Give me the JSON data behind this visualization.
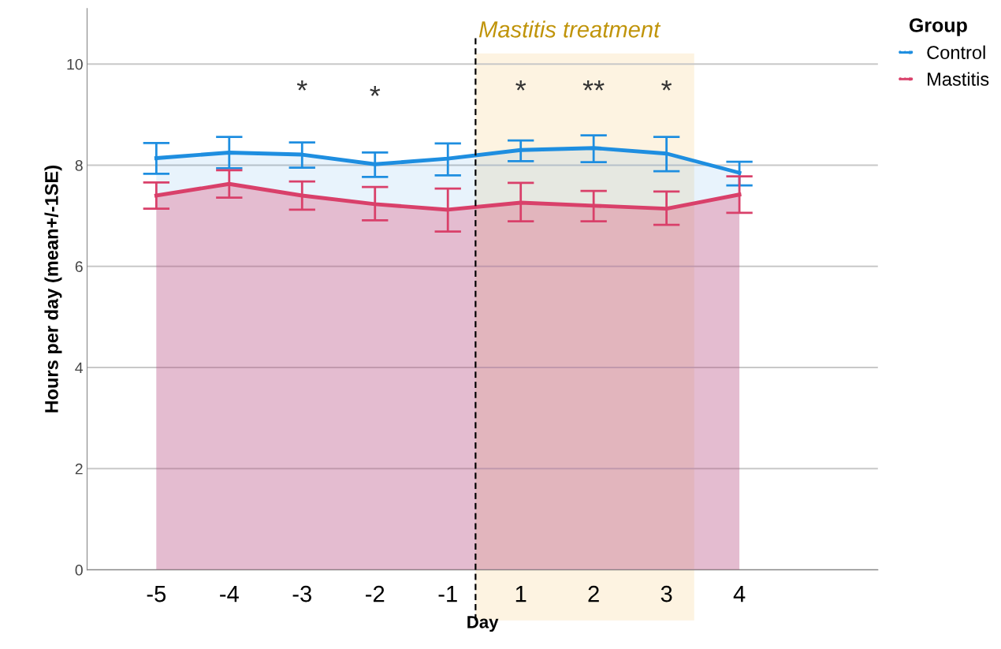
{
  "chart_data": {
    "type": "area",
    "xlabel": "Day",
    "ylabel": "Hours per day (mean+/-1SE)",
    "legend_title": "Group",
    "categories": [
      "-5",
      "-4",
      "-3",
      "-2",
      "-1",
      "1",
      "2",
      "3",
      "4"
    ],
    "series": [
      {
        "name": "Control",
        "color": "#1e8ee0",
        "values": [
          8.14,
          8.25,
          8.21,
          8.02,
          8.13,
          8.3,
          8.34,
          8.23,
          7.85
        ],
        "errors": [
          [
            7.83,
            8.44
          ],
          [
            7.94,
            8.56
          ],
          [
            7.95,
            8.45
          ],
          [
            7.77,
            8.25
          ],
          [
            7.8,
            8.43
          ],
          [
            8.08,
            8.49
          ],
          [
            8.06,
            8.59
          ],
          [
            7.88,
            8.56
          ],
          [
            7.6,
            8.07
          ]
        ]
      },
      {
        "name": "Mastitis",
        "color": "#d9406a",
        "values": [
          7.4,
          7.63,
          7.4,
          7.23,
          7.12,
          7.26,
          7.2,
          7.14,
          7.42
        ],
        "errors": [
          [
            7.14,
            7.66
          ],
          [
            7.36,
            7.9
          ],
          [
            7.12,
            7.68
          ],
          [
            6.91,
            7.57
          ],
          [
            6.69,
            7.54
          ],
          [
            6.89,
            7.65
          ],
          [
            6.89,
            7.49
          ],
          [
            6.82,
            7.48
          ],
          [
            7.06,
            7.78
          ]
        ]
      }
    ],
    "ylim": [
      0,
      11.1
    ],
    "yticks": [
      0,
      2,
      4,
      6,
      8,
      10
    ],
    "grid": "y",
    "legend": "top right",
    "marker": "none",
    "annotations": [
      "Mastitis treatment",
      "*",
      "*",
      "*",
      "**",
      "*"
    ]
  }
}
